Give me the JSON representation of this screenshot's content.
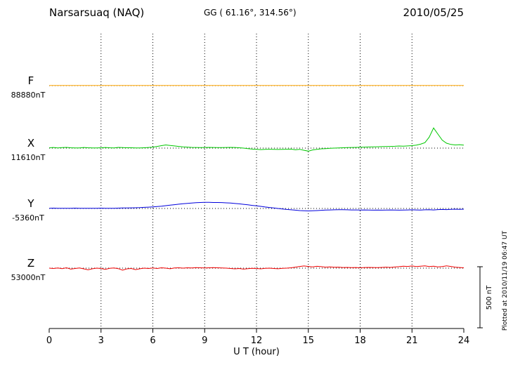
{
  "header": {
    "station": "Narsarsuaq (NAQ)",
    "coords": "GG ( 61.16°, 314.56°)",
    "date": "2010/05/25"
  },
  "axis": {
    "label": "U T (hour)",
    "ticks": [
      0,
      3,
      6,
      9,
      12,
      15,
      18,
      21,
      24
    ]
  },
  "scale_bar": {
    "label": "500 nT",
    "nT": 500
  },
  "plotted_at": "Plotted at 2010/11/19 06:47 UT",
  "chart_data": {
    "type": "line",
    "title": "Narsarsuaq (NAQ) magnetogram 2010/05/25",
    "xlabel": "U T (hour)",
    "x_range": [
      0,
      24
    ],
    "x_ticks": [
      0,
      3,
      6,
      9,
      12,
      15,
      18,
      21,
      24
    ],
    "gridlines_hours": [
      3,
      6,
      9,
      12,
      15,
      18,
      21
    ],
    "grid": "dotted-vertical",
    "legend_position": "left-of-traces",
    "scale_bar_nT": 500,
    "series": [
      {
        "name": "F",
        "color": "#FFA500",
        "baseline_label": "88880nT",
        "baseline_nT": 88880,
        "step_hours": 24,
        "offsets_nT": [
          1,
          1
        ]
      },
      {
        "name": "X",
        "color": "#00C800",
        "baseline_label": "11610nT",
        "baseline_nT": 11610,
        "step_hours": 0.25,
        "offsets_nT": [
          3,
          5,
          2,
          4,
          6,
          3,
          1,
          2,
          5,
          3,
          2,
          1,
          3,
          5,
          3,
          2,
          6,
          4,
          3,
          3,
          2,
          1,
          3,
          5,
          8,
          14,
          20,
          26,
          22,
          18,
          14,
          10,
          8,
          6,
          5,
          4,
          5,
          6,
          5,
          4,
          4,
          5,
          6,
          5,
          3,
          0,
          -4,
          -8,
          -10,
          -12,
          -10,
          -9,
          -10,
          -11,
          -10,
          -9,
          -8,
          -14,
          -10,
          -18,
          -25,
          -15,
          -10,
          -6,
          -4,
          -2,
          0,
          2,
          3,
          4,
          5,
          6,
          7,
          8,
          9,
          10,
          11,
          12,
          13,
          14,
          15,
          17,
          16,
          18,
          20,
          25,
          32,
          45,
          90,
          165,
          115,
          65,
          40,
          30,
          26,
          28,
          24
        ]
      },
      {
        "name": "Y",
        "color": "#0000DD",
        "baseline_label": "-5360nT",
        "baseline_nT": -5360,
        "step_hours": 0.25,
        "offsets_nT": [
          2,
          3,
          2,
          2,
          1,
          2,
          3,
          2,
          2,
          1,
          2,
          2,
          3,
          2,
          1,
          2,
          3,
          4,
          4,
          5,
          6,
          7,
          9,
          11,
          13,
          16,
          19,
          23,
          27,
          31,
          35,
          39,
          42,
          45,
          47,
          49,
          50,
          50,
          49,
          49,
          48,
          46,
          44,
          41,
          38,
          34,
          30,
          25,
          21,
          17,
          12,
          8,
          4,
          0,
          -4,
          -8,
          -11,
          -14,
          -17,
          -19,
          -20,
          -19,
          -17,
          -15,
          -13,
          -12,
          -11,
          -10,
          -10,
          -11,
          -12,
          -12,
          -13,
          -12,
          -13,
          -14,
          -13,
          -14,
          -13,
          -12,
          -13,
          -14,
          -13,
          -12,
          -11,
          -12,
          -13,
          -11,
          -10,
          -12,
          -9,
          -8,
          -9,
          -7,
          -6,
          -7,
          -6
        ]
      },
      {
        "name": "Z",
        "color": "#EE0000",
        "baseline_label": "53000nT",
        "baseline_nT": 53000,
        "step_hours": 0.25,
        "offsets_nT": [
          0,
          -3,
          2,
          -4,
          3,
          -8,
          -3,
          1,
          -6,
          -14,
          -5,
          0,
          -3,
          -10,
          -2,
          2,
          -4,
          -16,
          -6,
          -3,
          -12,
          -5,
          0,
          -3,
          2,
          -3,
          3,
          0,
          -5,
          2,
          3,
          0,
          3,
          1,
          4,
          3,
          2,
          3,
          4,
          3,
          2,
          0,
          -3,
          -6,
          -3,
          -8,
          -4,
          -2,
          -3,
          -6,
          -2,
          0,
          -3,
          -5,
          -2,
          0,
          3,
          8,
          14,
          18,
          14,
          10,
          15,
          12,
          8,
          10,
          7,
          8,
          5,
          6,
          4,
          5,
          3,
          5,
          6,
          5,
          4,
          6,
          8,
          6,
          9,
          12,
          16,
          14,
          18,
          13,
          16,
          19,
          13,
          16,
          10,
          13,
          19,
          14,
          8,
          5,
          3
        ]
      }
    ]
  }
}
